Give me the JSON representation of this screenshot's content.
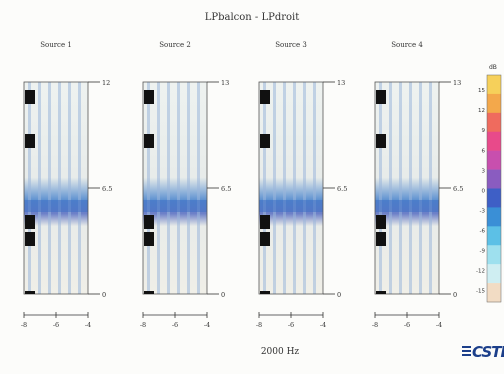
{
  "chart_data": {
    "type": "heatmap",
    "title": "LPbalcon - LPdroit",
    "footer_label": "2000 Hz",
    "panels": [
      {
        "name": "Source 1",
        "right_ticks": [
          "12",
          "6.5",
          "0"
        ],
        "x_ticks": [
          "-8",
          "-6",
          "-4"
        ]
      },
      {
        "name": "Source 2",
        "right_ticks": [
          "13",
          "6.5",
          "0"
        ],
        "x_ticks": [
          "-8",
          "-6",
          "-4"
        ]
      },
      {
        "name": "Source 3",
        "right_ticks": [
          "13",
          "6.5",
          "0"
        ],
        "x_ticks": [
          "-8",
          "-6",
          "-4"
        ]
      },
      {
        "name": "Source 4",
        "right_ticks": [
          "13",
          "6.5",
          "0"
        ],
        "x_ticks": [
          "-8",
          "-6",
          "-4"
        ]
      }
    ],
    "colorbar": {
      "unit": "dB",
      "ticks": [
        "15",
        "12",
        "9",
        "6",
        "3",
        "0",
        "-3",
        "-6",
        "-9",
        "-12",
        "-15"
      ],
      "colors": [
        "#f6d05a",
        "#f3a84b",
        "#ef6b5e",
        "#e84a8a",
        "#c84fae",
        "#8a5cc0",
        "#3e5fc6",
        "#3a8fd6",
        "#5cc0e6",
        "#9ee0ee",
        "#cfeef2",
        "#f2dcc4"
      ]
    }
  },
  "brand": {
    "logo_text": "CSTB"
  }
}
